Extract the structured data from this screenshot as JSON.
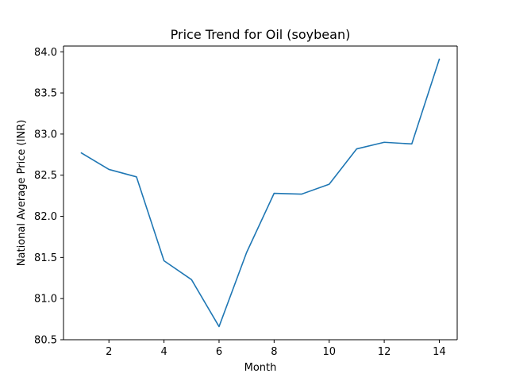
{
  "chart_data": {
    "type": "line",
    "title": "Price Trend for Oil (soybean)",
    "xlabel": "Month",
    "ylabel": "National Average Price (INR)",
    "xlim": [
      0.35,
      14.65
    ],
    "ylim": [
      80.5,
      84.07
    ],
    "xticks": [
      2,
      4,
      6,
      8,
      10,
      12,
      14
    ],
    "yticks": [
      80.5,
      81.0,
      81.5,
      82.0,
      82.5,
      83.0,
      83.5,
      84.0
    ],
    "grid": false,
    "series": [
      {
        "color": "#1f77b4",
        "x": [
          1,
          2,
          3,
          4,
          5,
          6,
          7,
          8,
          9,
          10,
          11,
          12,
          13,
          14
        ],
        "y": [
          82.77,
          82.57,
          82.48,
          81.46,
          81.23,
          80.66,
          81.56,
          82.28,
          82.27,
          82.39,
          82.82,
          82.9,
          82.88,
          83.91
        ]
      }
    ]
  }
}
